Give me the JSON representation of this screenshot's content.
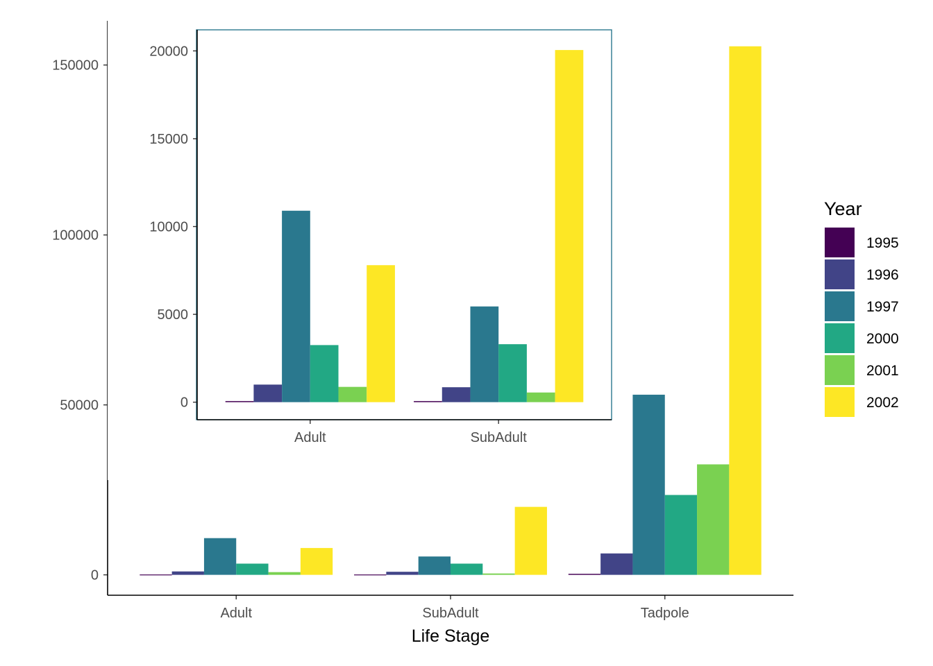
{
  "legend": {
    "title": "Year",
    "entries": [
      {
        "label": "1995",
        "color": "#440154"
      },
      {
        "label": "1996",
        "color": "#414487"
      },
      {
        "label": "1997",
        "color": "#2A788E"
      },
      {
        "label": "2000",
        "color": "#22A884"
      },
      {
        "label": "2001",
        "color": "#7AD151"
      },
      {
        "label": "2002",
        "color": "#FDE725"
      }
    ]
  },
  "chart_data": [
    {
      "type": "bar",
      "xlabel": "Life Stage",
      "ylabel": "",
      "categories": [
        "Adult",
        "SubAdult",
        "Tadpole"
      ],
      "ylim": [
        -6000,
        163000
      ],
      "yticks": [
        0,
        50000,
        100000,
        150000
      ],
      "grid": false,
      "legend_position": "right",
      "series": [
        {
          "name": "1995",
          "values": [
            100,
            100,
            300
          ]
        },
        {
          "name": "1996",
          "values": [
            1000,
            900,
            6300
          ]
        },
        {
          "name": "1997",
          "values": [
            10800,
            5400,
            53000
          ]
        },
        {
          "name": "2000",
          "values": [
            3300,
            3300,
            23500
          ]
        },
        {
          "name": "2001",
          "values": [
            800,
            400,
            32500
          ]
        },
        {
          "name": "2002",
          "values": [
            7900,
            20000,
            155500
          ]
        }
      ]
    },
    {
      "type": "bar",
      "xlabel": "",
      "ylabel": "",
      "categories": [
        "Adult",
        "SubAdult"
      ],
      "ylim": [
        -1000,
        21200
      ],
      "yticks": [
        0,
        5000,
        10000,
        15000,
        20000
      ],
      "grid": false,
      "series": [
        {
          "name": "1995",
          "values": [
            60,
            60
          ]
        },
        {
          "name": "1996",
          "values": [
            1000,
            850
          ]
        },
        {
          "name": "1997",
          "values": [
            10900,
            5450
          ]
        },
        {
          "name": "2000",
          "values": [
            3250,
            3300
          ]
        },
        {
          "name": "2001",
          "values": [
            870,
            550
          ]
        },
        {
          "name": "2002",
          "values": [
            7800,
            20050
          ]
        }
      ]
    }
  ]
}
